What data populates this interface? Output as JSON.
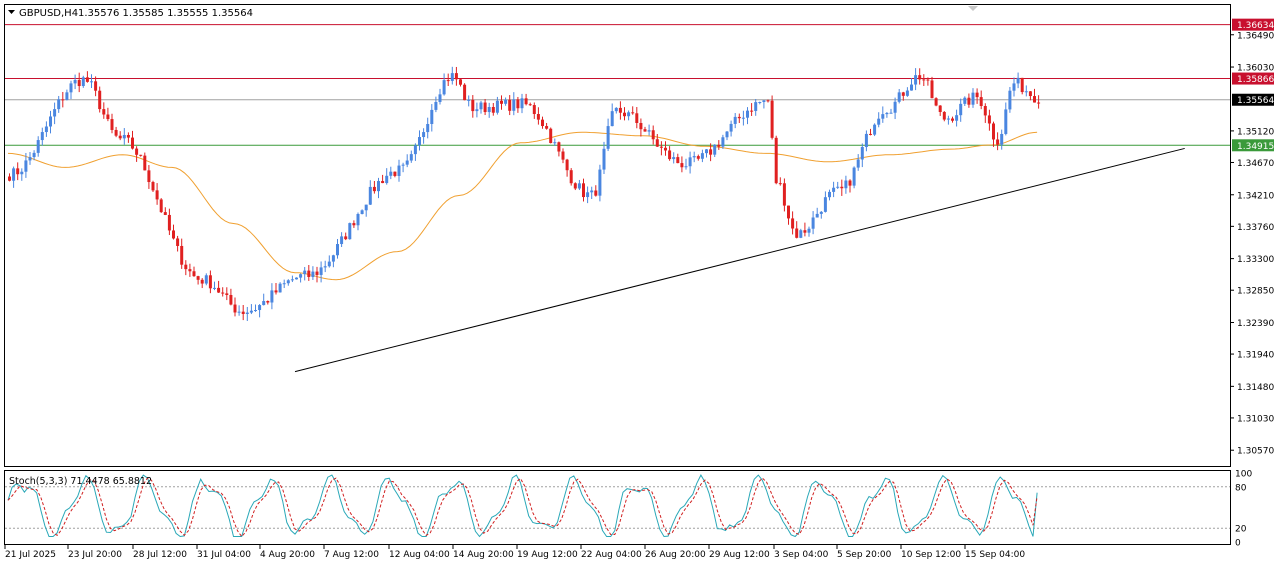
{
  "header": {
    "symbol": "GBPUSD,H4",
    "ohlc": "1.35576 1.35585 1.35555 1.35564"
  },
  "colors": {
    "bull": "#4a86e0",
    "bear": "#e02020",
    "ma": "#f0a030",
    "resistance": "#c8102e",
    "support": "#3a9a3a",
    "current": "#000000",
    "stoch_main": "#2aa8b8",
    "stoch_signal": "#d02020",
    "grid": "#ffffff",
    "frame": "#000000"
  },
  "chart_data": [
    {
      "type": "candlestick",
      "name": "price",
      "ylim": [
        1.30345,
        1.36914
      ],
      "y_ticks": [
        "1.36490",
        "1.36030",
        "1.35120",
        "1.34670",
        "1.34210",
        "1.33760",
        "1.33300",
        "1.32850",
        "1.32390",
        "1.31940",
        "1.31480",
        "1.31030",
        "1.30570"
      ],
      "x_ticks": [
        "21 Jul 2025",
        "23 Jul 20:00",
        "28 Jul 12:00",
        "31 Jul 04:00",
        "4 Aug 20:00",
        "7 Aug 12:00",
        "12 Aug 04:00",
        "14 Aug 20:00",
        "19 Aug 12:00",
        "22 Aug 04:00",
        "26 Aug 20:00",
        "29 Aug 12:00",
        "3 Sep 04:00",
        "5 Sep 20:00",
        "10 Sep 12:00",
        "15 Sep 04:00"
      ],
      "price_levels": [
        {
          "label": "1.36634",
          "value": 1.36634,
          "kind": "resistance"
        },
        {
          "label": "1.35866",
          "value": 1.35866,
          "kind": "resistance"
        },
        {
          "label": "1.35564",
          "value": 1.35564,
          "kind": "current"
        },
        {
          "label": "1.34915",
          "value": 1.34915,
          "kind": "support"
        }
      ],
      "trendline": {
        "x": [
          70,
          287
        ],
        "y": [
          1.3169,
          1.3487
        ]
      },
      "key_points": [
        {
          "x": 0,
          "y": 1.345
        },
        {
          "x": 18,
          "y": 1.3585
        },
        {
          "x": 27,
          "y": 1.35
        },
        {
          "x": 47,
          "y": 1.33
        },
        {
          "x": 57,
          "y": 1.3255
        },
        {
          "x": 72,
          "y": 1.3305
        },
        {
          "x": 95,
          "y": 1.3455
        },
        {
          "x": 108,
          "y": 1.359
        },
        {
          "x": 113,
          "y": 1.3545
        },
        {
          "x": 125,
          "y": 1.355
        },
        {
          "x": 142,
          "y": 1.342
        },
        {
          "x": 148,
          "y": 1.354
        },
        {
          "x": 165,
          "y": 1.3465
        },
        {
          "x": 185,
          "y": 1.3555
        },
        {
          "x": 187,
          "y": 1.344
        },
        {
          "x": 192,
          "y": 1.3365
        },
        {
          "x": 202,
          "y": 1.3425
        },
        {
          "x": 214,
          "y": 1.3545
        },
        {
          "x": 222,
          "y": 1.359
        },
        {
          "x": 228,
          "y": 1.353
        },
        {
          "x": 236,
          "y": 1.356
        },
        {
          "x": 241,
          "y": 1.35
        },
        {
          "x": 245,
          "y": 1.358
        },
        {
          "x": 251,
          "y": 1.356
        }
      ],
      "ma_points": [
        {
          "x": 0,
          "y": 1.348
        },
        {
          "x": 14,
          "y": 1.346
        },
        {
          "x": 28,
          "y": 1.3478
        },
        {
          "x": 40,
          "y": 1.346
        },
        {
          "x": 55,
          "y": 1.338
        },
        {
          "x": 70,
          "y": 1.331
        },
        {
          "x": 80,
          "y": 1.33
        },
        {
          "x": 95,
          "y": 1.334
        },
        {
          "x": 110,
          "y": 1.342
        },
        {
          "x": 125,
          "y": 1.3495
        },
        {
          "x": 140,
          "y": 1.351
        },
        {
          "x": 155,
          "y": 1.3505
        },
        {
          "x": 170,
          "y": 1.349
        },
        {
          "x": 185,
          "y": 1.348
        },
        {
          "x": 200,
          "y": 1.3468
        },
        {
          "x": 215,
          "y": 1.3478
        },
        {
          "x": 230,
          "y": 1.3486
        },
        {
          "x": 240,
          "y": 1.3492
        },
        {
          "x": 251,
          "y": 1.351
        }
      ]
    },
    {
      "type": "line",
      "name": "stochastic",
      "label": "Stoch(5,3,3) 71.4478 65.8812",
      "ylim": [
        0,
        100
      ],
      "y_ticks": [
        "100",
        "80",
        "20",
        "0"
      ],
      "levels": [
        80,
        20
      ],
      "main_last": 71.4478,
      "signal_last": 65.8812
    }
  ]
}
